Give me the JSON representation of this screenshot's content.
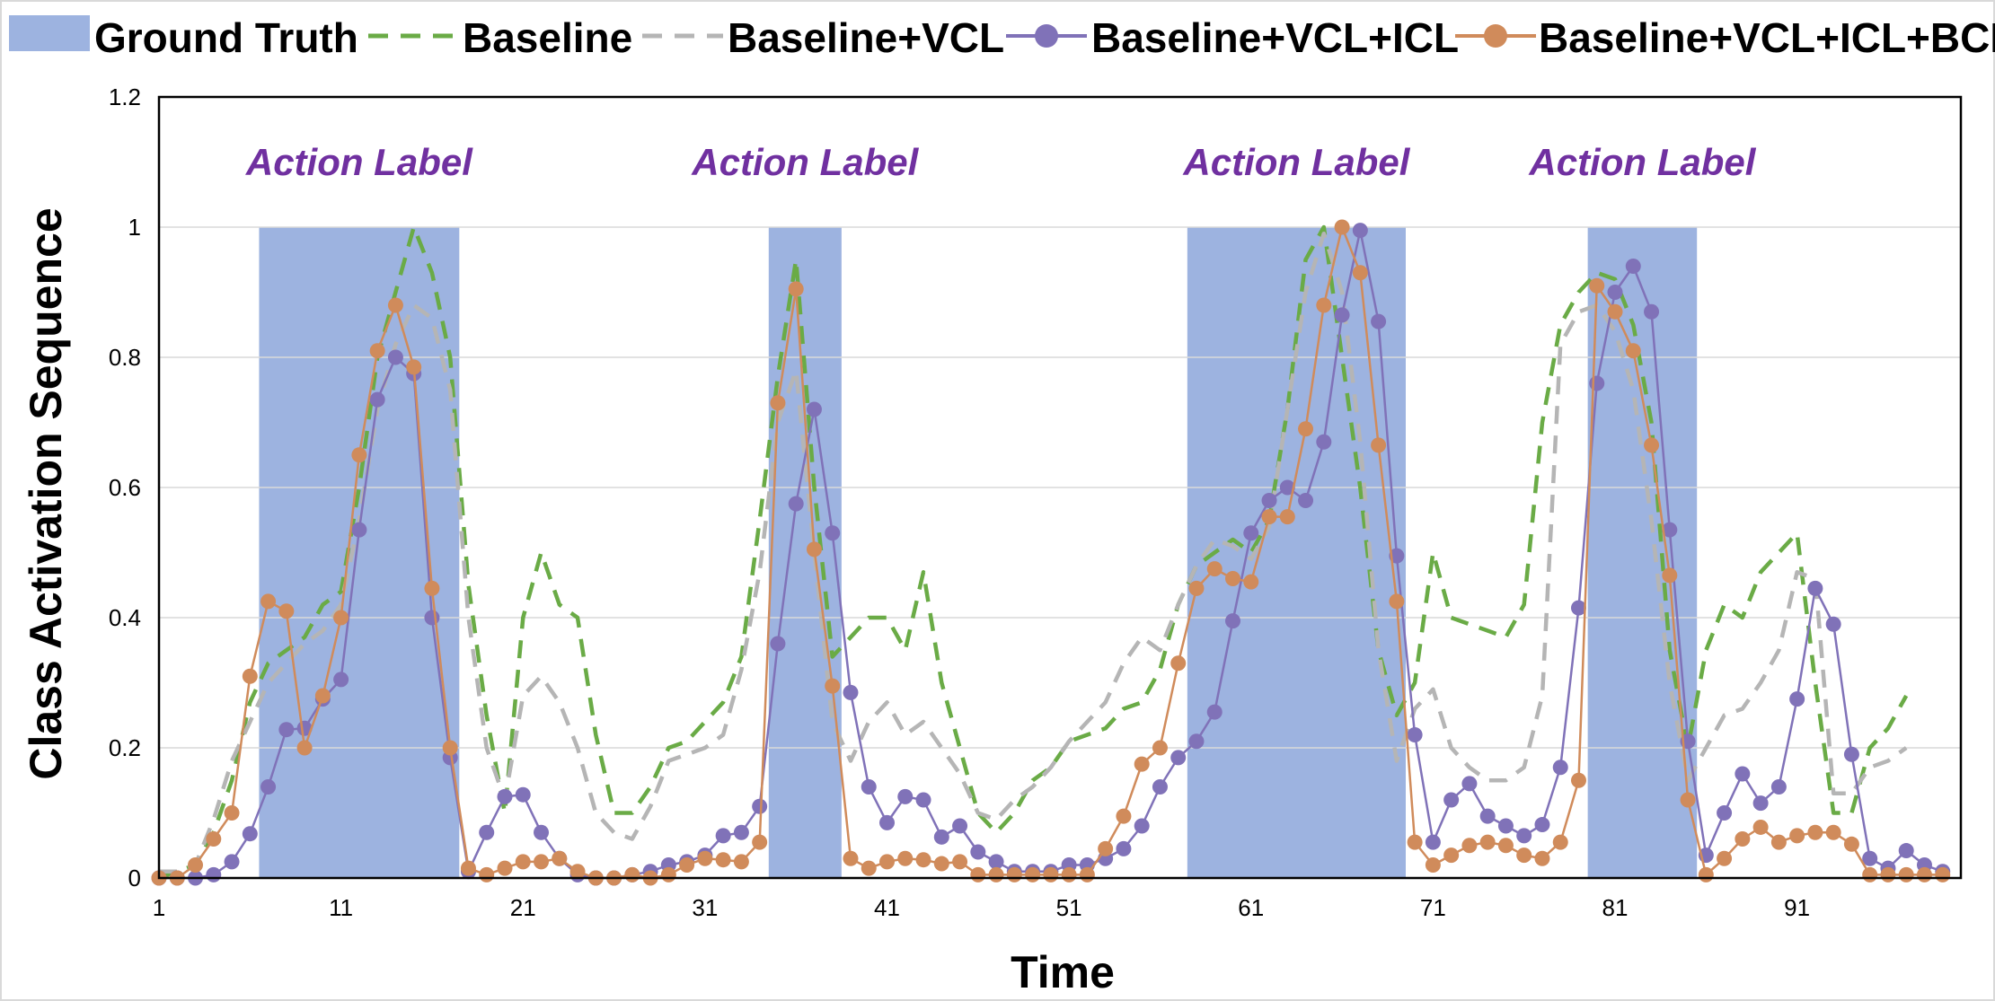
{
  "chart_data": {
    "type": "line",
    "xlabel": "Time",
    "ylabel": "Class Activation Sequence",
    "xlim": [
      1,
      100
    ],
    "ylim": [
      0,
      1.2
    ],
    "y_ticks": [
      "0",
      "0.2",
      "0.4",
      "0.6",
      "0.8",
      "1",
      "1.2"
    ],
    "x_ticks": [
      "1",
      "11",
      "21",
      "31",
      "41",
      "51",
      "61",
      "71",
      "81",
      "91"
    ],
    "grid": "horizontal",
    "legend_position": "top",
    "annotation_label": "Action Label",
    "ground_truth": {
      "name": "Ground Truth",
      "color": "#9db3e0",
      "intervals": [
        [
          6.5,
          17.5
        ],
        [
          34.5,
          38.5
        ],
        [
          57.5,
          69.5
        ],
        [
          79.5,
          85.5
        ]
      ]
    },
    "series": [
      {
        "name": "Baseline",
        "color": "#6aab46",
        "style": "dashed",
        "values": [
          0,
          0.01,
          0.02,
          0.07,
          0.15,
          0.27,
          0.33,
          0.35,
          0.37,
          0.42,
          0.44,
          0.6,
          0.8,
          0.9,
          1.0,
          0.93,
          0.8,
          0.45,
          0.25,
          0.1,
          0.4,
          0.5,
          0.42,
          0.4,
          0.22,
          0.1,
          0.1,
          0.14,
          0.2,
          0.21,
          0.24,
          0.27,
          0.34,
          0.55,
          0.77,
          0.95,
          0.6,
          0.34,
          0.37,
          0.4,
          0.4,
          0.35,
          0.47,
          0.3,
          0.2,
          0.1,
          0.07,
          0.1,
          0.15,
          0.17,
          0.21,
          0.22,
          0.23,
          0.26,
          0.27,
          0.32,
          0.42,
          0.48,
          0.5,
          0.52,
          0.5,
          0.55,
          0.72,
          0.95,
          1.0,
          0.8,
          0.6,
          0.35,
          0.25,
          0.3,
          0.5,
          0.4,
          0.39,
          0.38,
          0.37,
          0.42,
          0.7,
          0.85,
          0.9,
          0.93,
          0.92,
          0.85,
          0.7,
          0.35,
          0.2,
          0.35,
          0.42,
          0.4,
          0.47,
          0.5,
          0.53,
          0.3,
          0.1,
          0.1,
          0.2,
          0.23,
          0.28
        ]
      },
      {
        "name": "Baseline+VCL",
        "color": "#b5b5b5",
        "style": "dashed",
        "values": [
          0.01,
          0.01,
          0.02,
          0.09,
          0.18,
          0.24,
          0.3,
          0.33,
          0.36,
          0.38,
          0.42,
          0.55,
          0.72,
          0.82,
          0.88,
          0.86,
          0.75,
          0.4,
          0.2,
          0.12,
          0.28,
          0.31,
          0.27,
          0.2,
          0.1,
          0.07,
          0.06,
          0.11,
          0.18,
          0.19,
          0.2,
          0.22,
          0.32,
          0.47,
          0.7,
          0.78,
          0.5,
          0.24,
          0.18,
          0.24,
          0.27,
          0.22,
          0.24,
          0.2,
          0.16,
          0.1,
          0.09,
          0.12,
          0.14,
          0.17,
          0.21,
          0.24,
          0.27,
          0.33,
          0.37,
          0.35,
          0.42,
          0.48,
          0.52,
          0.51,
          0.49,
          0.54,
          0.72,
          0.9,
          0.99,
          0.9,
          0.67,
          0.35,
          0.18,
          0.26,
          0.29,
          0.2,
          0.17,
          0.15,
          0.15,
          0.17,
          0.28,
          0.82,
          0.87,
          0.88,
          0.84,
          0.75,
          0.55,
          0.3,
          0.15,
          0.2,
          0.25,
          0.26,
          0.3,
          0.35,
          0.47,
          0.46,
          0.13,
          0.13,
          0.17,
          0.18,
          0.2
        ]
      },
      {
        "name": "Baseline+VCL+ICL",
        "color": "#8072b8",
        "style": "solid-markers",
        "values": [
          0,
          0,
          0,
          0.005,
          0.025,
          0.068,
          0.14,
          0.228,
          0.23,
          0.275,
          0.305,
          0.535,
          0.735,
          0.8,
          0.775,
          0.4,
          0.185,
          0.01,
          0.07,
          0.125,
          0.128,
          0.07,
          0.03,
          0.005,
          0,
          0,
          0.005,
          0.01,
          0.02,
          0.025,
          0.035,
          0.065,
          0.07,
          0.11,
          0.36,
          0.575,
          0.72,
          0.53,
          0.285,
          0.14,
          0.085,
          0.125,
          0.12,
          0.063,
          0.08,
          0.04,
          0.025,
          0.01,
          0.01,
          0.01,
          0.02,
          0.02,
          0.03,
          0.045,
          0.08,
          0.14,
          0.185,
          0.21,
          0.255,
          0.395,
          0.53,
          0.58,
          0.6,
          0.58,
          0.67,
          0.865,
          0.995,
          0.855,
          0.495,
          0.22,
          0.055,
          0.12,
          0.145,
          0.095,
          0.08,
          0.065,
          0.082,
          0.17,
          0.415,
          0.76,
          0.9,
          0.94,
          0.87,
          0.535,
          0.21,
          0.035,
          0.1,
          0.16,
          0.115,
          0.14,
          0.275,
          0.445,
          0.39,
          0.19,
          0.03,
          0.015,
          0.042,
          0.02,
          0.01
        ]
      },
      {
        "name": "Baseline+VCL+ICL+BCL",
        "color": "#d08b5b",
        "style": "solid-markers",
        "values": [
          0,
          0,
          0.02,
          0.06,
          0.1,
          0.31,
          0.425,
          0.41,
          0.2,
          0.28,
          0.4,
          0.65,
          0.81,
          0.88,
          0.785,
          0.445,
          0.2,
          0.015,
          0.005,
          0.015,
          0.025,
          0.025,
          0.03,
          0.01,
          0,
          0,
          0.005,
          0,
          0.005,
          0.02,
          0.03,
          0.028,
          0.025,
          0.055,
          0.73,
          0.905,
          0.505,
          0.295,
          0.03,
          0.015,
          0.025,
          0.03,
          0.028,
          0.022,
          0.025,
          0.005,
          0.005,
          0.005,
          0.005,
          0.005,
          0.005,
          0.005,
          0.045,
          0.095,
          0.175,
          0.2,
          0.33,
          0.445,
          0.475,
          0.46,
          0.455,
          0.555,
          0.555,
          0.69,
          0.88,
          1.0,
          0.93,
          0.665,
          0.425,
          0.055,
          0.02,
          0.035,
          0.05,
          0.055,
          0.05,
          0.035,
          0.03,
          0.055,
          0.15,
          0.91,
          0.87,
          0.81,
          0.665,
          0.465,
          0.12,
          0.005,
          0.03,
          0.06,
          0.078,
          0.055,
          0.065,
          0.07,
          0.07,
          0.052,
          0.005,
          0.005,
          0.005,
          0.005,
          0.005
        ]
      }
    ]
  }
}
